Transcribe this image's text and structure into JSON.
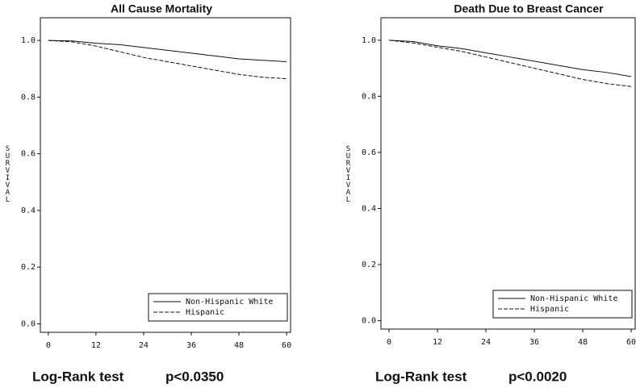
{
  "chart_data": [
    {
      "type": "line",
      "title": "All Cause Mortality",
      "ylabel": "SURVIVAL",
      "x": [
        0,
        6,
        12,
        18,
        24,
        30,
        36,
        42,
        48,
        54,
        60
      ],
      "series": [
        {
          "name": "Non-Hispanic White",
          "color": "#111111",
          "dash": false,
          "values": [
            1.0,
            0.998,
            0.99,
            0.985,
            0.975,
            0.965,
            0.955,
            0.945,
            0.935,
            0.93,
            0.925
          ]
        },
        {
          "name": "Hispanic",
          "color": "#111111",
          "dash": true,
          "values": [
            1.0,
            0.995,
            0.98,
            0.96,
            0.94,
            0.925,
            0.91,
            0.895,
            0.88,
            0.87,
            0.865
          ]
        }
      ],
      "xlim": [
        -2,
        61
      ],
      "xticks": [
        0,
        12,
        24,
        36,
        48,
        60
      ],
      "ylim": [
        -0.03,
        1.08
      ],
      "yticks": [
        {
          "value": 0,
          "label": "0.0"
        },
        0.2,
        0.4,
        0.6,
        0.8,
        {
          "value": 1,
          "label": "1.0"
        }
      ],
      "legend": "lower right",
      "annotations": [
        "Log-Rank test",
        "p<0.0350"
      ]
    },
    {
      "type": "line",
      "title": "Death Due to Breast Cancer",
      "ylabel": "SURVIVAL",
      "x": [
        0,
        6,
        12,
        18,
        24,
        30,
        36,
        42,
        48,
        54,
        60
      ],
      "series": [
        {
          "name": "Non-Hispanic White",
          "color": "#111111",
          "dash": false,
          "values": [
            1.0,
            0.995,
            0.98,
            0.97,
            0.955,
            0.94,
            0.925,
            0.91,
            0.895,
            0.885,
            0.87
          ]
        },
        {
          "name": "Hispanic",
          "color": "#111111",
          "dash": true,
          "values": [
            1.0,
            0.99,
            0.975,
            0.96,
            0.94,
            0.92,
            0.9,
            0.88,
            0.86,
            0.845,
            0.835
          ]
        }
      ],
      "xlim": [
        -2,
        61
      ],
      "xticks": [
        0,
        12,
        24,
        36,
        48,
        60
      ],
      "ylim": [
        -0.03,
        1.08
      ],
      "yticks": [
        {
          "value": 0,
          "label": "0.0"
        },
        0.2,
        0.4,
        0.6,
        0.8,
        {
          "value": 1,
          "label": "1.0"
        }
      ],
      "legend": "lower right",
      "annotations": [
        "Log-Rank test",
        "p<0.0020"
      ]
    }
  ]
}
